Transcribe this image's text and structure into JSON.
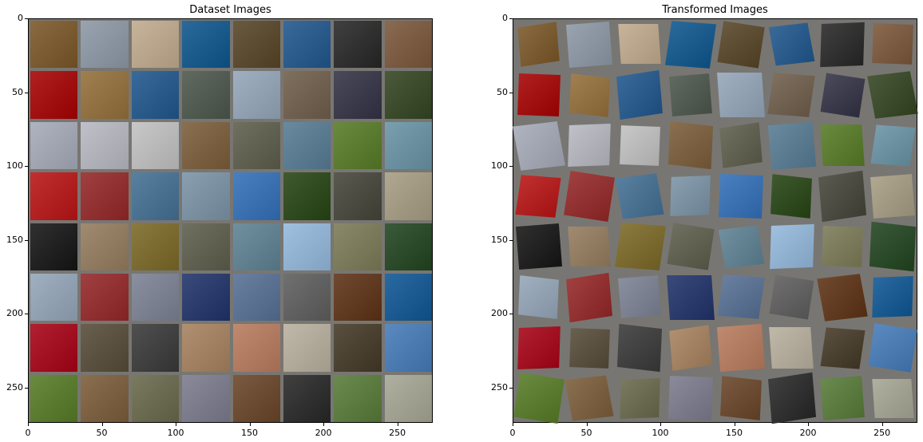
{
  "left_panel": {
    "title": "Dataset Images",
    "x_ticks": [
      "0",
      "50",
      "100",
      "150",
      "200",
      "250"
    ],
    "y_ticks": [
      "0",
      "50",
      "100",
      "150",
      "200",
      "250"
    ]
  },
  "right_panel": {
    "title": "Transformed Images",
    "x_ticks": [
      "0",
      "50",
      "100",
      "150",
      "200",
      "250"
    ],
    "y_ticks": [
      "0",
      "50",
      "100",
      "150",
      "200",
      "250"
    ]
  },
  "grid": {
    "rows": 8,
    "cols": 8
  },
  "tile_colors": [
    [
      "#8a6a40",
      "#9aa4b0",
      "#c8b49a",
      "#2a6a9a",
      "#6a5a40",
      "#3a6a9a",
      "#404040",
      "#8a6a50"
    ],
    [
      "#b02020",
      "#a08050",
      "#3a6a9a",
      "#606a60",
      "#a0b0c0",
      "#807060",
      "#4a4a5a",
      "#4a5a3a"
    ],
    [
      "#b0b4c0",
      "#c0c0c8",
      "#c8c8c8",
      "#8a7050",
      "#707060",
      "#6a8aa0",
      "#6a8a40",
      "#7aa0b0"
    ],
    [
      "#c03030",
      "#a04040",
      "#5a80a0",
      "#8aa0b0",
      "#4a80c0",
      "#405a30",
      "#5a5a50",
      "#b0a890"
    ],
    [
      "#303030",
      "#a08a70",
      "#8a7a40",
      "#707060",
      "#7090a0",
      "#a0c0e0",
      "#8a8a6a",
      "#3a5a3a"
    ],
    [
      "#a0b0c0",
      "#a04040",
      "#8a90a0",
      "#3a4a7a",
      "#6a80a0",
      "#707070",
      "#704a30",
      "#2a6aa0"
    ],
    [
      "#b02030",
      "#6a6050",
      "#505050",
      "#b09070",
      "#c08a70",
      "#c0b8a8",
      "#5a5040",
      "#5a8ac0"
    ],
    [
      "#6a8a40",
      "#8a7050",
      "#7a7a60",
      "#8a8a9a",
      "#7a5a40",
      "#404040",
      "#6a8a50",
      "#b0b0a0"
    ]
  ]
}
